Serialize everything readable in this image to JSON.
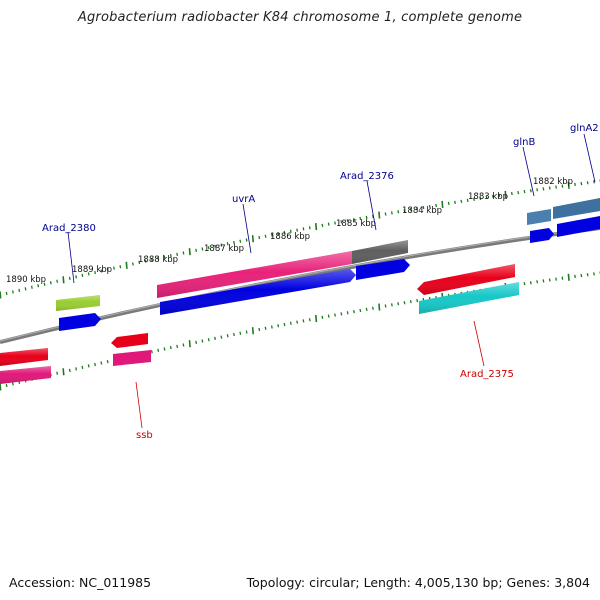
{
  "title": "Agrobacterium radiobacter K84 chromosome 1, complete genome",
  "footer": {
    "accession": "Accession: NC_011985",
    "summary": "Topology: circular; Length: 4,005,130 bp; Genes: 3,804"
  },
  "colors": {
    "backbone": "#7a7a7a",
    "tick": "#1f7a1f",
    "forward_label": "#00008b",
    "reverse_label": "#cc0000"
  },
  "ticks": [
    {
      "kbp": 1890,
      "label": "1890 kbp"
    },
    {
      "kbp": 1889,
      "label": "1889 kbp"
    },
    {
      "kbp": 1888,
      "label": "1888 kbp"
    },
    {
      "kbp": 1887,
      "label": "1887 kbp"
    },
    {
      "kbp": 1886,
      "label": "1886 kbp"
    },
    {
      "kbp": 1885,
      "label": "1885 kbp"
    },
    {
      "kbp": 1884,
      "label": "1884 kbp"
    },
    {
      "kbp": 1883,
      "label": "1883 kbp"
    },
    {
      "kbp": 1882,
      "label": "1882 kbp"
    }
  ],
  "gene_labels": [
    {
      "name": "Arad_2380",
      "strand": "forward"
    },
    {
      "name": "uvrA",
      "strand": "forward"
    },
    {
      "name": "Arad_2376",
      "strand": "forward"
    },
    {
      "name": "glnB",
      "strand": "forward"
    },
    {
      "name": "glnA2",
      "strand": "forward"
    },
    {
      "name": "Arad_2375",
      "strand": "reverse"
    },
    {
      "name": "ssb",
      "strand": "reverse"
    }
  ],
  "features": [
    {
      "id": "fwd-lime",
      "color": "#9acd32"
    },
    {
      "id": "fwd-pink-long",
      "color": "#e8227a"
    },
    {
      "id": "fwd-gray",
      "color": "#5f5f5f"
    },
    {
      "id": "fwd-steel-1",
      "color": "#4a7fae"
    },
    {
      "id": "fwd-steel-2",
      "color": "#3e70a0"
    },
    {
      "id": "fwd-blue-1",
      "color": "#0000e0"
    },
    {
      "id": "fwd-blue-long",
      "color": "#0000e0"
    },
    {
      "id": "fwd-blue-2",
      "color": "#0000e0"
    },
    {
      "id": "fwd-blue-3",
      "color": "#0000e0"
    },
    {
      "id": "fwd-blue-4",
      "color": "#0000e0"
    },
    {
      "id": "rev-red-left",
      "color": "#e8001a"
    },
    {
      "id": "rev-pink-left",
      "color": "#e0187a"
    },
    {
      "id": "rev-red-small",
      "color": "#e8001a"
    },
    {
      "id": "rev-pink-small",
      "color": "#e0187a"
    },
    {
      "id": "rev-red-right",
      "color": "#e8001a"
    },
    {
      "id": "rev-cyan-right",
      "color": "#16c8c8"
    }
  ]
}
